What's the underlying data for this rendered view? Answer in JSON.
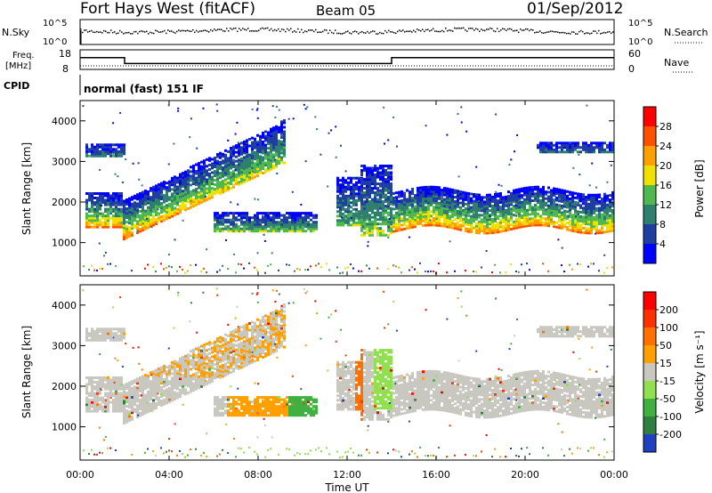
{
  "chart_data": {
    "type": "heatmap",
    "header": {
      "station": "Fort Hays West (fitACF)",
      "beam": "Beam 05",
      "date": "01/Sep/2012"
    },
    "noise_panel": {
      "left_label": "N.Sky",
      "right_label": "N.Search",
      "left_ticks": [
        "10^5",
        "10^0"
      ],
      "right_ticks": [
        "10^5",
        "10^0"
      ]
    },
    "freq_panel": {
      "left_label_1": "Freq.",
      "left_label_2": "[MHz]",
      "left_ticks": [
        "18",
        "8"
      ],
      "right_label": "Nave",
      "right_ticks": [
        "60",
        "0"
      ],
      "freq_steps": [
        {
          "t0": 0,
          "t1": 2,
          "mhz": 14
        },
        {
          "t0": 2,
          "t1": 14,
          "mhz": 11
        },
        {
          "t0": 14,
          "t1": 24,
          "mhz": 14
        }
      ]
    },
    "cpid": {
      "label": "CPID",
      "mode": "normal (fast) 151 IF"
    },
    "x_axis": {
      "label": "Time UT",
      "ticks": [
        "00:00",
        "04:00",
        "08:00",
        "12:00",
        "16:00",
        "20:00",
        "00:00"
      ],
      "range_hours": [
        0,
        24
      ]
    },
    "y_axis": {
      "label": "Slant Range [km]",
      "ticks": [
        "1000",
        "2000",
        "3000",
        "4000"
      ],
      "range_km": [
        180,
        4500
      ]
    },
    "power_panel": {
      "colorbar_label": "Power [dB]",
      "colorbar_ticks": [
        "28",
        "24",
        "20",
        "16",
        "12",
        "8",
        "4"
      ],
      "colors": [
        "#0000ff",
        "#1f3fa0",
        "#2f7f6f",
        "#4fb84f",
        "#f0e000",
        "#ffa000",
        "#ff5000",
        "#ff0000"
      ],
      "scatter_bands": [
        {
          "t0": 0.2,
          "t1": 1.9,
          "r0": 1350,
          "r1": 2200,
          "level": 0.75
        },
        {
          "t0": 1.9,
          "t1": 9.0,
          "r0c": 1100,
          "r1c": 2000,
          "drift": 1700,
          "level": 0.8
        },
        {
          "t0": 5.5,
          "t1": 9.5,
          "r0": 1250,
          "r1": 1750,
          "level": 0.4
        },
        {
          "t0": 14.0,
          "t1": 23.9,
          "r0": 1300,
          "r1": 2200,
          "level": 0.78
        }
      ]
    },
    "velocity_panel": {
      "colorbar_label": "Velocity [m s⁻¹]",
      "colorbar_ticks": [
        "200",
        "100",
        "50",
        "15",
        "-15",
        "-50",
        "-100",
        "-200"
      ],
      "colors": [
        "#2040c0",
        "#2f7f3f",
        "#40b040",
        "#90e050",
        "#c8c8c0",
        "#ffa000",
        "#ff7000",
        "#ff3000",
        "#ff0000"
      ],
      "ground_scatter_color": "#c8c8c0"
    }
  }
}
